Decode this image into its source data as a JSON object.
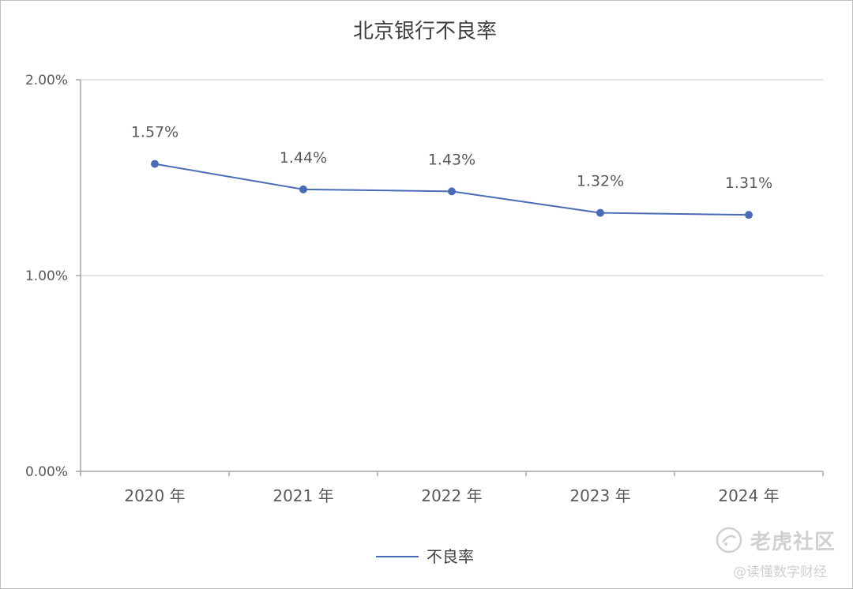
{
  "chart_data": {
    "type": "line",
    "title": "北京银行不良率",
    "categories": [
      "2020 年",
      "2021 年",
      "2022 年",
      "2023 年",
      "2024 年"
    ],
    "series": [
      {
        "name": "不良率",
        "values": [
          1.57,
          1.44,
          1.43,
          1.32,
          1.31
        ],
        "labels": [
          "1.57%",
          "1.44%",
          "1.43%",
          "1.32%",
          "1.31%"
        ],
        "color": "#4a6cb8"
      }
    ],
    "ylim": [
      0,
      2
    ],
    "yticks": [
      0,
      1,
      2
    ],
    "ytick_labels": [
      "0.00%",
      "1.00%",
      "2.00%"
    ],
    "grid": true,
    "legend_position": "bottom"
  },
  "watermark": {
    "community": "老虎社区",
    "author": "@读懂数字财经",
    "icon": "tiger-community-logo-icon"
  }
}
